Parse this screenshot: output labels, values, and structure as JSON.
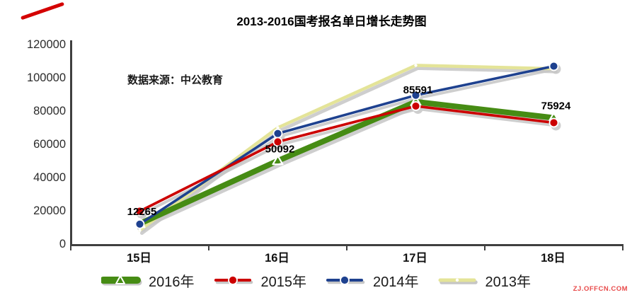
{
  "title": "2013-2016国考报名单日增长走势图",
  "source_note": "数据来源：中公教育",
  "watermark": "ZJ.OFFCN.COM",
  "colors": {
    "axis": "#3f3f3f",
    "shadow": "#c6c6c6",
    "annotation_red": "#d40000",
    "watermark_red": "#e84a4a",
    "green_2016": "#468c14",
    "red_2015": "#cc0000",
    "blue_2014": "#1e418f",
    "yellow_2013": "#e4e498"
  },
  "chart_data": {
    "type": "line",
    "categories": [
      "15日",
      "16日",
      "17日",
      "18日"
    ],
    "series": [
      {
        "name": "2016年",
        "color": "#468c14",
        "marker": "triangle",
        "width": 8,
        "values": [
          12265,
          50092,
          85591,
          75924
        ],
        "labels": [
          "12265",
          "50092",
          "85591",
          "75924"
        ]
      },
      {
        "name": "2015年",
        "color": "#cc0000",
        "marker": "circle",
        "width": 3.6,
        "values": [
          19800,
          61500,
          83000,
          73000
        ]
      },
      {
        "name": "2014年",
        "color": "#1e418f",
        "marker": "circle",
        "width": 3.6,
        "values": [
          12000,
          66500,
          89500,
          107000
        ]
      },
      {
        "name": "2013年",
        "color": "#e4e498",
        "marker": "dot",
        "width": 4.5,
        "values": [
          8300,
          70000,
          107500,
          105500
        ]
      }
    ],
    "ylim": [
      0,
      120000
    ],
    "ytick_step": 20000,
    "yticks": [
      "0",
      "20000",
      "40000",
      "60000",
      "80000",
      "100000",
      "120000"
    ],
    "xlabel": "",
    "ylabel": "",
    "grid": false,
    "legend_position": "bottom"
  }
}
